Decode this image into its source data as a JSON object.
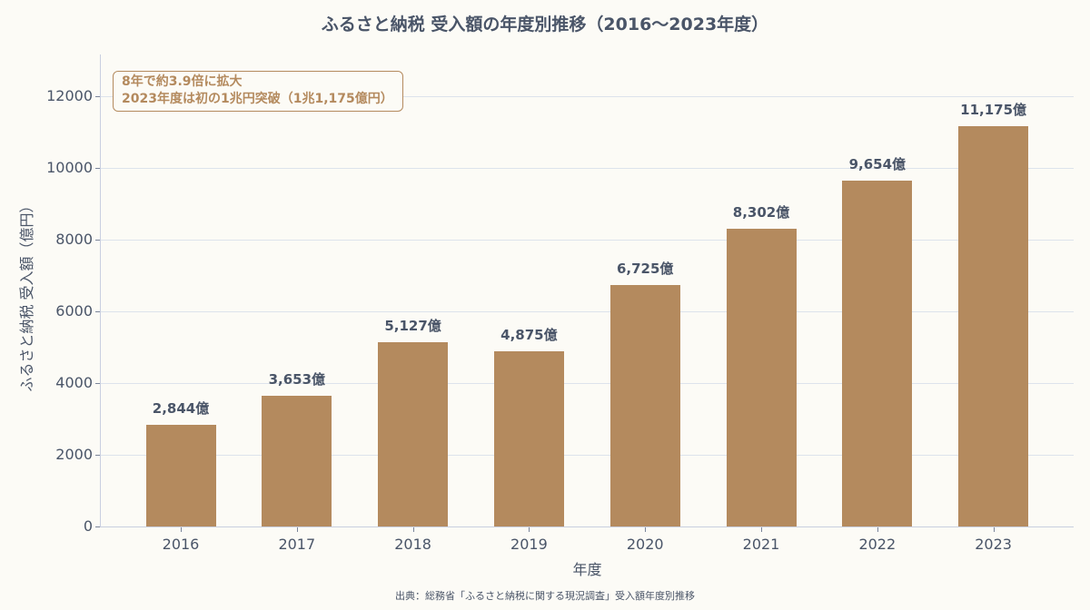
{
  "chart_data": {
    "type": "bar",
    "title": "ふるさと納税 受入額の年度別推移（2016〜2023年度）",
    "xlabel": "年度",
    "ylabel": "ふるさと納税 受入額（億円）",
    "categories": [
      "2016",
      "2017",
      "2018",
      "2019",
      "2020",
      "2021",
      "2022",
      "2023"
    ],
    "values": [
      2844,
      3653,
      5127,
      4875,
      6725,
      8302,
      9654,
      11175
    ],
    "data_labels": [
      "2,844億",
      "3,653億",
      "5,127億",
      "4,875億",
      "6,725億",
      "8,302億",
      "9,654億",
      "11,175億"
    ],
    "yticks": [
      0,
      2000,
      4000,
      6000,
      8000,
      10000,
      12000
    ],
    "ylim": [
      0,
      13150
    ],
    "grid": "horizontal",
    "bar_color": "#b48a5e",
    "annotation": [
      "8年で約3.9倍に拡大",
      "2023年度は初の1兆円突破（1兆1,175億円）"
    ],
    "source": "出典：総務省「ふるさと納税に関する現況調査」受入額年度別推移"
  },
  "colors": {
    "bar": "#b48a5e",
    "text": "#4a5568",
    "background": "#fcfbf6",
    "grid": "#dde3ec"
  }
}
